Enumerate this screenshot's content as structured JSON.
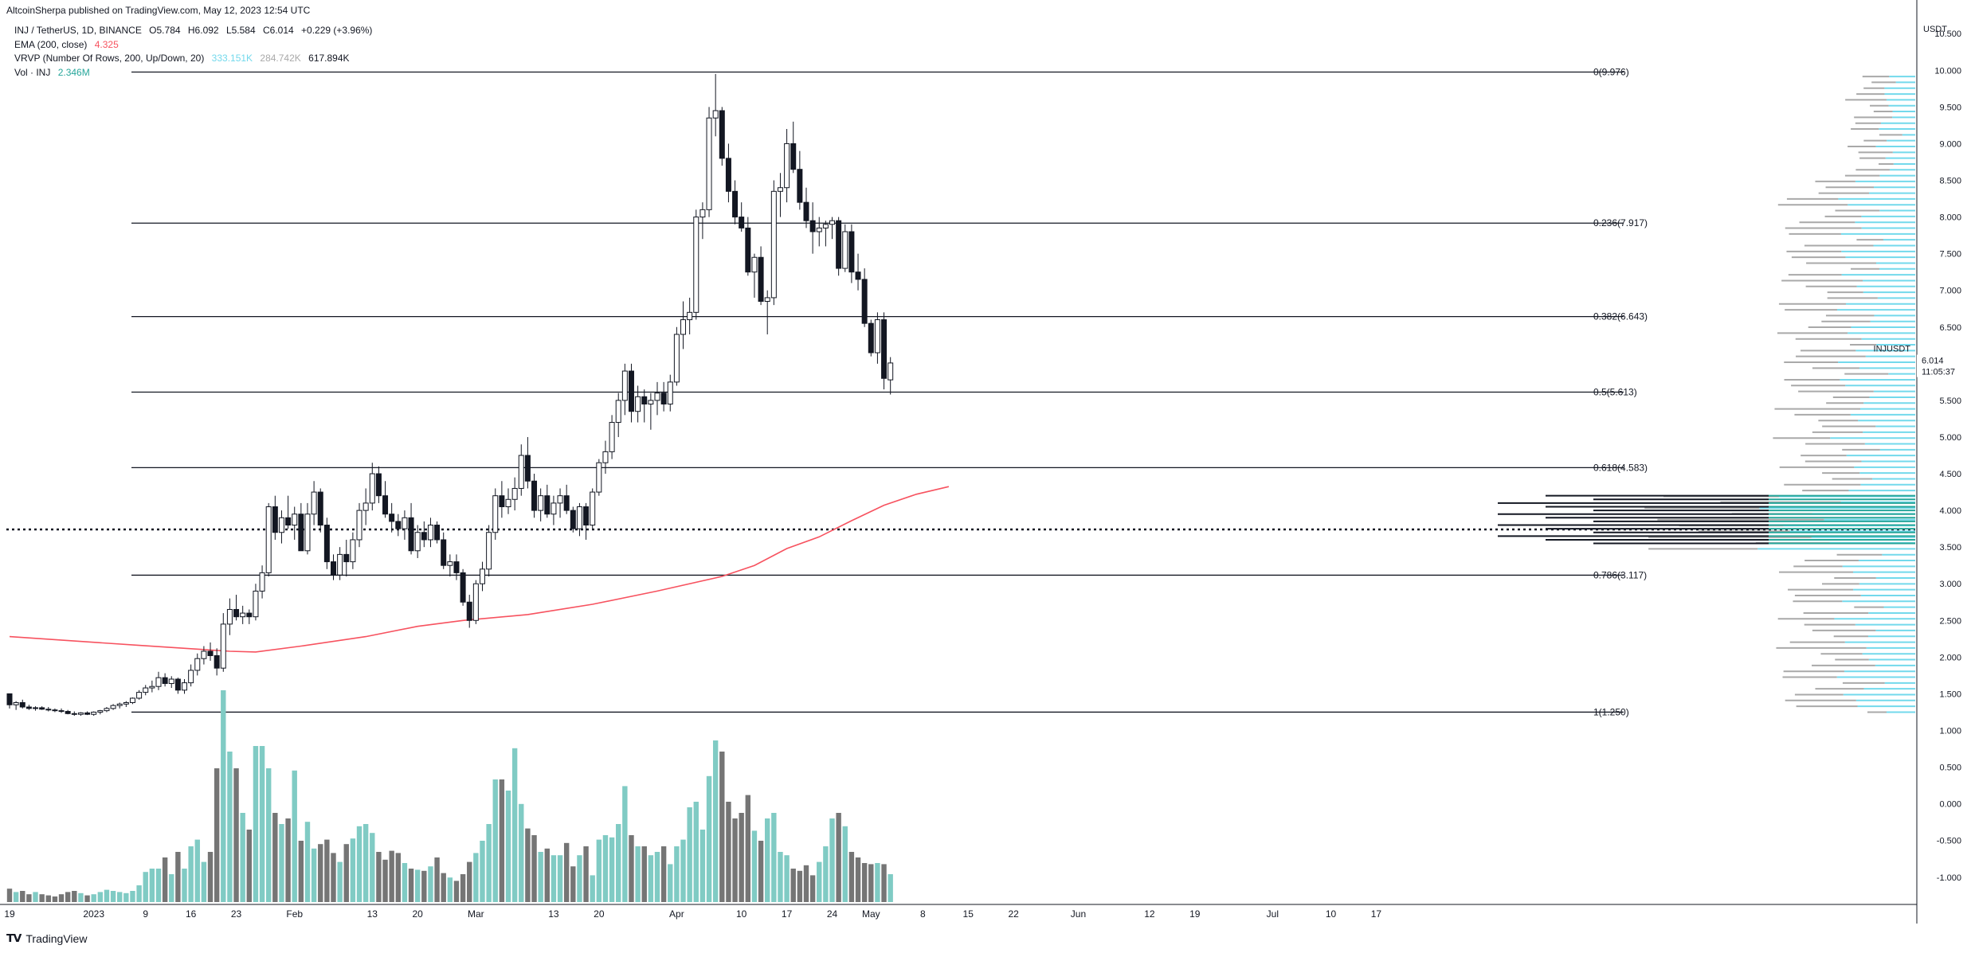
{
  "header": {
    "publisher": "AltcoinSherpa published on TradingView.com, May 12, 2023 12:54 UTC"
  },
  "legend": {
    "symbol": "INJ / TetherUS, 1D, BINANCE",
    "open": "O5.784",
    "high": "H6.092",
    "low": "L5.584",
    "close": "C6.014",
    "change": "+0.229 (+3.96%)",
    "ema_label": "EMA (200, close)",
    "ema_value": "4.325",
    "vrvp_label": "VRVP (Number Of Rows, 200, Up/Down, 20)",
    "vrvp_up": "333.151K",
    "vrvp_down": "284.742K",
    "vrvp_total": "617.894K",
    "vol_label": "Vol · INJ",
    "vol_value": "2.346M"
  },
  "colors": {
    "ema": "#f7525f",
    "vol_up": "#80cbc4",
    "vol_down": "#757575",
    "vrvp_up": "#73d9ec",
    "vrvp_down": "#a9a9a9"
  },
  "price_tag": {
    "symbol": "INJUSDT",
    "price": "6.014",
    "countdown": "11:05:37"
  },
  "footer": {
    "brand": "TradingView"
  },
  "chart_data": {
    "type": "candlestick",
    "title": "INJ / TetherUS, 1D, BINANCE",
    "y_unit": "USDT",
    "price_range": [
      -1.35,
      10.85
    ],
    "price_ticks": [
      "10.500",
      "10.000",
      "9.500",
      "9.000",
      "8.500",
      "8.000",
      "7.500",
      "7.000",
      "6.500",
      "6.000",
      "5.500",
      "5.000",
      "4.500",
      "4.000",
      "3.500",
      "3.000",
      "2.500",
      "2.000",
      "1.500",
      "1.000",
      "0.500",
      "0.000",
      "-0.500",
      "-1.000"
    ],
    "x_ticks": [
      {
        "day": 0,
        "label": "19"
      },
      {
        "day": 13,
        "label": "2023"
      },
      {
        "day": 21,
        "label": "9"
      },
      {
        "day": 28,
        "label": "16"
      },
      {
        "day": 35,
        "label": "23"
      },
      {
        "day": 44,
        "label": "Feb"
      },
      {
        "day": 56,
        "label": "13"
      },
      {
        "day": 63,
        "label": "20"
      },
      {
        "day": 72,
        "label": "Mar"
      },
      {
        "day": 84,
        "label": "13"
      },
      {
        "day": 91,
        "label": "20"
      },
      {
        "day": 103,
        "label": "Apr"
      },
      {
        "day": 113,
        "label": "10"
      },
      {
        "day": 120,
        "label": "17"
      },
      {
        "day": 127,
        "label": "24"
      },
      {
        "day": 133,
        "label": "May"
      },
      {
        "day": 141,
        "label": "8"
      },
      {
        "day": 148,
        "label": "15"
      },
      {
        "day": 155,
        "label": "22"
      },
      {
        "day": 165,
        "label": "Jun"
      },
      {
        "day": 176,
        "label": "12"
      },
      {
        "day": 183,
        "label": "19"
      },
      {
        "day": 195,
        "label": "Jul"
      },
      {
        "day": 204,
        "label": "10"
      },
      {
        "day": 211,
        "label": "17"
      }
    ],
    "fib_levels": [
      {
        "label": "0(9.976)",
        "price": 9.976
      },
      {
        "label": "0.236(7.917)",
        "price": 7.917
      },
      {
        "label": "0.382(6.643)",
        "price": 6.643
      },
      {
        "label": "0.5(5.613)",
        "price": 5.613
      },
      {
        "label": "0.618(4.583)",
        "price": 4.583
      },
      {
        "label": "0.786(3.117)",
        "price": 3.117
      },
      {
        "label": "1(1.250)",
        "price": 1.25
      }
    ],
    "dotted_level": 3.74,
    "ema": [
      [
        0,
        2.28
      ],
      [
        20,
        2.16
      ],
      [
        34,
        2.08
      ],
      [
        38,
        2.07
      ],
      [
        45,
        2.15
      ],
      [
        55,
        2.28
      ],
      [
        63,
        2.42
      ],
      [
        70,
        2.5
      ],
      [
        80,
        2.58
      ],
      [
        90,
        2.72
      ],
      [
        100,
        2.9
      ],
      [
        110,
        3.1
      ],
      [
        115,
        3.25
      ],
      [
        120,
        3.48
      ],
      [
        125,
        3.64
      ],
      [
        130,
        3.86
      ],
      [
        135,
        4.07
      ],
      [
        140,
        4.22
      ],
      [
        145,
        4.325
      ]
    ],
    "candles": [
      [
        1.5,
        1.5,
        1.3,
        1.35
      ],
      [
        1.35,
        1.4,
        1.28,
        1.38
      ],
      [
        1.38,
        1.42,
        1.3,
        1.32
      ],
      [
        1.32,
        1.35,
        1.28,
        1.3
      ],
      [
        1.3,
        1.33,
        1.27,
        1.31
      ],
      [
        1.31,
        1.33,
        1.28,
        1.29
      ],
      [
        1.29,
        1.32,
        1.26,
        1.28
      ],
      [
        1.28,
        1.3,
        1.25,
        1.27
      ],
      [
        1.27,
        1.3,
        1.24,
        1.26
      ],
      [
        1.26,
        1.28,
        1.22,
        1.23
      ],
      [
        1.23,
        1.26,
        1.2,
        1.22
      ],
      [
        1.22,
        1.25,
        1.2,
        1.24
      ],
      [
        1.24,
        1.26,
        1.21,
        1.22
      ],
      [
        1.22,
        1.26,
        1.2,
        1.25
      ],
      [
        1.25,
        1.28,
        1.22,
        1.27
      ],
      [
        1.27,
        1.32,
        1.25,
        1.3
      ],
      [
        1.3,
        1.36,
        1.28,
        1.34
      ],
      [
        1.34,
        1.38,
        1.3,
        1.36
      ],
      [
        1.36,
        1.4,
        1.32,
        1.38
      ],
      [
        1.38,
        1.45,
        1.36,
        1.44
      ],
      [
        1.44,
        1.55,
        1.42,
        1.52
      ],
      [
        1.52,
        1.62,
        1.48,
        1.58
      ],
      [
        1.58,
        1.68,
        1.52,
        1.6
      ],
      [
        1.6,
        1.8,
        1.55,
        1.72
      ],
      [
        1.72,
        1.78,
        1.6,
        1.64
      ],
      [
        1.64,
        1.74,
        1.58,
        1.7
      ],
      [
        1.7,
        1.72,
        1.5,
        1.55
      ],
      [
        1.55,
        1.7,
        1.5,
        1.65
      ],
      [
        1.65,
        1.9,
        1.6,
        1.82
      ],
      [
        1.82,
        2.05,
        1.75,
        1.98
      ],
      [
        1.98,
        2.15,
        1.9,
        2.08
      ],
      [
        2.08,
        2.2,
        1.95,
        2.02
      ],
      [
        2.02,
        2.12,
        1.75,
        1.85
      ],
      [
        1.85,
        2.6,
        1.8,
        2.45
      ],
      [
        2.45,
        2.8,
        2.3,
        2.65
      ],
      [
        2.65,
        2.85,
        2.5,
        2.55
      ],
      [
        2.55,
        2.7,
        2.45,
        2.6
      ],
      [
        2.6,
        2.65,
        2.45,
        2.55
      ],
      [
        2.55,
        3.0,
        2.5,
        2.9
      ],
      [
        2.9,
        3.25,
        2.8,
        3.15
      ],
      [
        3.15,
        4.1,
        3.1,
        4.05
      ],
      [
        4.05,
        4.2,
        3.6,
        3.7
      ],
      [
        3.7,
        4.0,
        3.55,
        3.9
      ],
      [
        3.9,
        4.2,
        3.75,
        3.8
      ],
      [
        3.8,
        4.05,
        3.6,
        3.95
      ],
      [
        3.95,
        4.1,
        3.5,
        3.45
      ],
      [
        3.45,
        4.1,
        3.4,
        3.95
      ],
      [
        3.95,
        4.4,
        3.8,
        4.25
      ],
      [
        4.25,
        4.3,
        3.7,
        3.8
      ],
      [
        3.8,
        3.9,
        3.2,
        3.3
      ],
      [
        3.3,
        3.4,
        3.05,
        3.12
      ],
      [
        3.12,
        3.5,
        3.05,
        3.4
      ],
      [
        3.4,
        3.6,
        3.1,
        3.3
      ],
      [
        3.3,
        3.7,
        3.2,
        3.6
      ],
      [
        3.6,
        4.1,
        3.5,
        4.0
      ],
      [
        4.0,
        4.3,
        3.8,
        4.1
      ],
      [
        4.1,
        4.65,
        4.0,
        4.5
      ],
      [
        4.5,
        4.6,
        4.1,
        4.2
      ],
      [
        4.2,
        4.4,
        3.9,
        3.95
      ],
      [
        3.95,
        4.1,
        3.7,
        3.85
      ],
      [
        3.85,
        3.95,
        3.65,
        3.75
      ],
      [
        3.75,
        4.0,
        3.6,
        3.9
      ],
      [
        3.9,
        4.1,
        3.4,
        3.45
      ],
      [
        3.45,
        3.8,
        3.35,
        3.7
      ],
      [
        3.7,
        3.85,
        3.5,
        3.6
      ],
      [
        3.6,
        3.9,
        3.5,
        3.8
      ],
      [
        3.8,
        3.85,
        3.55,
        3.6
      ],
      [
        3.6,
        3.7,
        3.2,
        3.25
      ],
      [
        3.25,
        3.4,
        3.1,
        3.3
      ],
      [
        3.3,
        3.4,
        3.05,
        3.15
      ],
      [
        3.15,
        3.2,
        2.7,
        2.75
      ],
      [
        2.75,
        2.85,
        2.4,
        2.5
      ],
      [
        2.5,
        3.05,
        2.45,
        3.0
      ],
      [
        3.0,
        3.3,
        2.9,
        3.2
      ],
      [
        3.2,
        3.8,
        3.1,
        3.7
      ],
      [
        3.7,
        4.3,
        3.6,
        4.2
      ],
      [
        4.2,
        4.4,
        3.9,
        4.05
      ],
      [
        4.05,
        4.3,
        3.95,
        4.15
      ],
      [
        4.15,
        4.45,
        4.0,
        4.3
      ],
      [
        4.3,
        4.9,
        4.2,
        4.75
      ],
      [
        4.75,
        5.0,
        4.3,
        4.4
      ],
      [
        4.4,
        4.5,
        3.9,
        4.0
      ],
      [
        4.0,
        4.3,
        3.85,
        4.2
      ],
      [
        4.2,
        4.35,
        3.9,
        3.95
      ],
      [
        3.95,
        4.2,
        3.8,
        4.1
      ],
      [
        4.1,
        4.3,
        3.9,
        4.2
      ],
      [
        4.2,
        4.35,
        3.95,
        4.0
      ],
      [
        4.0,
        4.05,
        3.7,
        3.75
      ],
      [
        3.75,
        4.1,
        3.65,
        4.05
      ],
      [
        4.05,
        4.1,
        3.6,
        3.8
      ],
      [
        3.8,
        4.3,
        3.75,
        4.25
      ],
      [
        4.25,
        4.7,
        4.2,
        4.65
      ],
      [
        4.65,
        4.95,
        4.5,
        4.8
      ],
      [
        4.8,
        5.3,
        4.7,
        5.2
      ],
      [
        5.2,
        5.6,
        5.0,
        5.5
      ],
      [
        5.5,
        6.0,
        5.3,
        5.9
      ],
      [
        5.9,
        6.0,
        5.2,
        5.35
      ],
      [
        5.35,
        5.7,
        5.2,
        5.55
      ],
      [
        5.55,
        5.65,
        5.2,
        5.45
      ],
      [
        5.45,
        5.6,
        5.1,
        5.5
      ],
      [
        5.5,
        5.75,
        5.3,
        5.6
      ],
      [
        5.6,
        5.75,
        5.35,
        5.45
      ],
      [
        5.45,
        5.85,
        5.35,
        5.75
      ],
      [
        5.75,
        6.5,
        5.7,
        6.4
      ],
      [
        6.4,
        6.85,
        6.2,
        6.6
      ],
      [
        6.6,
        6.9,
        6.4,
        6.7
      ],
      [
        6.7,
        8.1,
        6.6,
        8.0
      ],
      [
        8.0,
        8.2,
        7.7,
        8.1
      ],
      [
        8.1,
        9.5,
        8.0,
        9.35
      ],
      [
        9.35,
        9.95,
        9.1,
        9.45
      ],
      [
        9.45,
        9.5,
        8.7,
        8.8
      ],
      [
        8.8,
        9.0,
        8.2,
        8.35
      ],
      [
        8.35,
        8.5,
        7.9,
        8.0
      ],
      [
        8.0,
        8.2,
        7.8,
        7.85
      ],
      [
        7.85,
        8.0,
        7.2,
        7.25
      ],
      [
        7.25,
        7.5,
        6.9,
        7.45
      ],
      [
        7.45,
        7.6,
        6.8,
        6.85
      ],
      [
        6.85,
        7.0,
        6.4,
        6.9
      ],
      [
        6.9,
        8.5,
        6.8,
        8.35
      ],
      [
        8.35,
        8.6,
        8.0,
        8.4
      ],
      [
        8.4,
        9.2,
        8.2,
        9.0
      ],
      [
        9.0,
        9.3,
        8.6,
        8.65
      ],
      [
        8.65,
        8.9,
        8.1,
        8.2
      ],
      [
        8.2,
        8.4,
        7.85,
        7.95
      ],
      [
        7.95,
        8.2,
        7.5,
        7.8
      ],
      [
        7.8,
        8.0,
        7.6,
        7.85
      ],
      [
        7.85,
        7.95,
        7.6,
        7.9
      ],
      [
        7.9,
        8.0,
        7.7,
        7.95
      ],
      [
        7.95,
        8.0,
        7.2,
        7.3
      ],
      [
        7.3,
        7.9,
        7.25,
        7.8
      ],
      [
        7.8,
        7.9,
        7.1,
        7.25
      ],
      [
        7.25,
        7.5,
        7.0,
        7.15
      ],
      [
        7.15,
        7.3,
        6.5,
        6.55
      ],
      [
        6.55,
        6.6,
        6.1,
        6.15
      ],
      [
        6.15,
        6.7,
        6.0,
        6.6
      ],
      [
        6.6,
        6.7,
        5.65,
        5.8
      ],
      [
        5.78,
        6.09,
        5.58,
        6.01
      ]
    ],
    "volume": [
      12,
      9,
      10,
      7,
      9,
      7,
      6,
      5,
      7,
      9,
      10,
      8,
      6,
      7,
      9,
      11,
      10,
      9,
      8,
      10,
      15,
      27,
      30,
      30,
      40,
      25,
      45,
      30,
      50,
      56,
      36,
      45,
      120,
      190,
      135,
      120,
      80,
      65,
      140,
      140,
      120,
      80,
      70,
      75,
      118,
      55,
      72,
      48,
      52,
      56,
      44,
      36,
      52,
      57,
      68,
      70,
      62,
      45,
      38,
      46,
      44,
      35,
      30,
      29,
      28,
      32,
      40,
      26,
      22,
      19,
      25,
      36,
      44,
      55,
      70,
      110,
      110,
      100,
      138,
      88,
      66,
      60,
      45,
      48,
      42,
      42,
      53,
      32,
      42,
      50,
      24,
      56,
      60,
      58,
      70,
      104,
      60,
      50,
      50,
      42,
      45,
      50,
      34,
      50,
      56,
      85,
      90,
      65,
      113,
      145,
      135,
      90,
      75,
      80,
      96,
      64,
      55,
      75,
      80,
      45,
      42,
      30,
      28,
      33,
      24,
      36,
      50,
      75,
      80,
      68,
      45,
      40,
      35,
      34,
      35,
      34,
      25
    ],
    "volume_range": [
      0,
      200
    ]
  }
}
